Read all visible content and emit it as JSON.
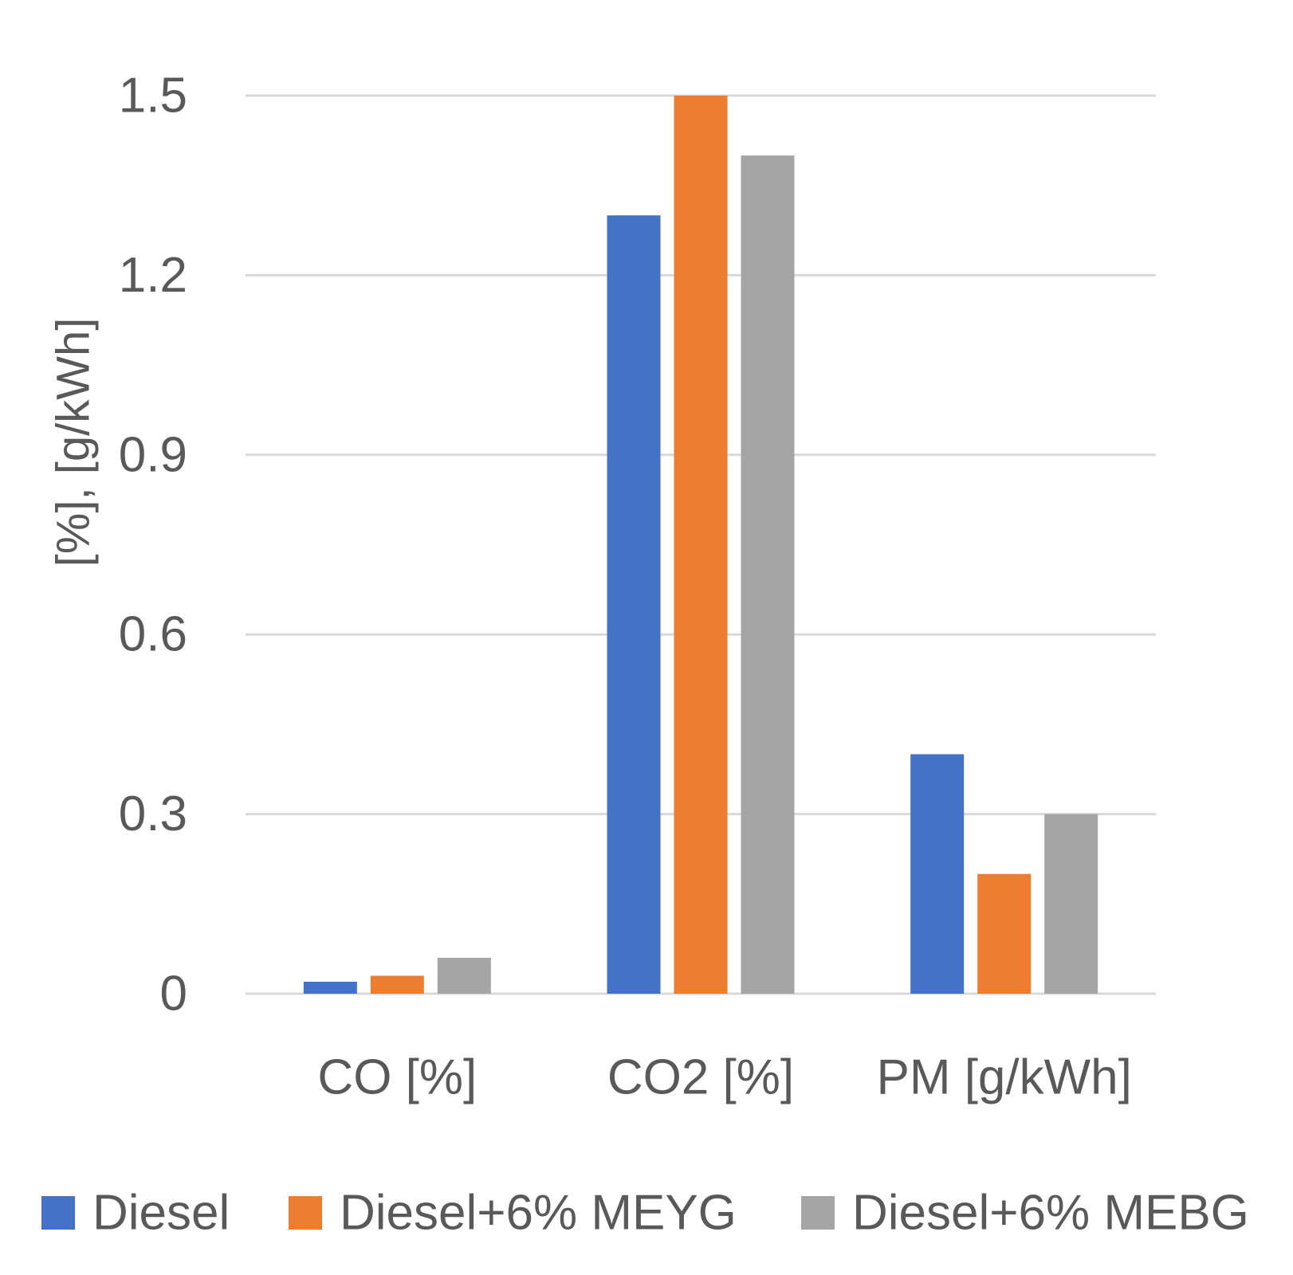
{
  "chart_data": {
    "type": "bar",
    "title": "",
    "xlabel": "",
    "ylabel": "[%], [g/kWh]",
    "ylim": [
      0,
      1.5
    ],
    "yticks": [
      0,
      0.3,
      0.6,
      0.9,
      1.2,
      1.5
    ],
    "ytick_labels": [
      "0",
      "0.3",
      "0.6",
      "0.9",
      "1.2",
      "1.5"
    ],
    "grid": true,
    "legend_position": "bottom",
    "categories": [
      "CO [%]",
      "CO2 [%]",
      "PM [g/kWh]"
    ],
    "series": [
      {
        "name": "Diesel",
        "color": "#4472C4",
        "values": [
          0.02,
          1.3,
          0.4
        ]
      },
      {
        "name": "Diesel+6% MEYG",
        "color": "#ED7D31",
        "values": [
          0.03,
          1.5,
          0.2
        ]
      },
      {
        "name": "Diesel+6% MEBG",
        "color": "#A5A5A5",
        "values": [
          0.06,
          1.4,
          0.3
        ]
      }
    ]
  }
}
